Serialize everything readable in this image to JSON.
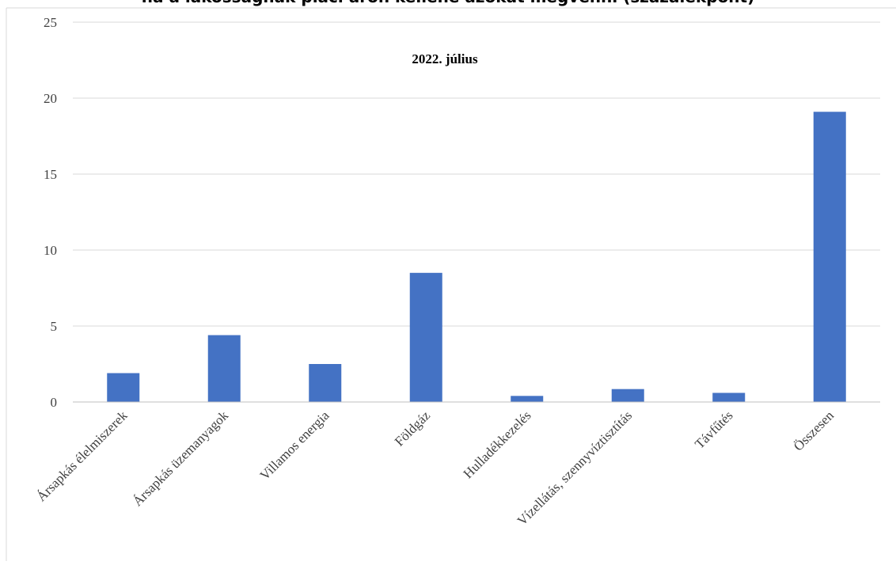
{
  "header": {
    "title": "ha a lakosságnak piaci áron kellene azokat megvenni (százalékpont)"
  },
  "chart_data": {
    "type": "bar",
    "title": "2022. július",
    "xlabel": "",
    "ylabel": "",
    "categories": [
      "Ársapkás élelmiszerek",
      "Ársapkás üzemanyagok",
      "Villamos energia",
      "Földgáz",
      "Hulladékkezelés",
      "Vízellátás, szennyvíztisztítás",
      "Távfűtés",
      "Összesen"
    ],
    "values": [
      1.9,
      4.4,
      2.5,
      8.5,
      0.4,
      0.85,
      0.6,
      19.1
    ],
    "ylim": [
      0,
      25
    ],
    "yticks": [
      0,
      5,
      10,
      15,
      20,
      25
    ],
    "grid": true,
    "legend": "none",
    "bar_color": "#4472c4",
    "grid_color": "#d9d9d9"
  }
}
